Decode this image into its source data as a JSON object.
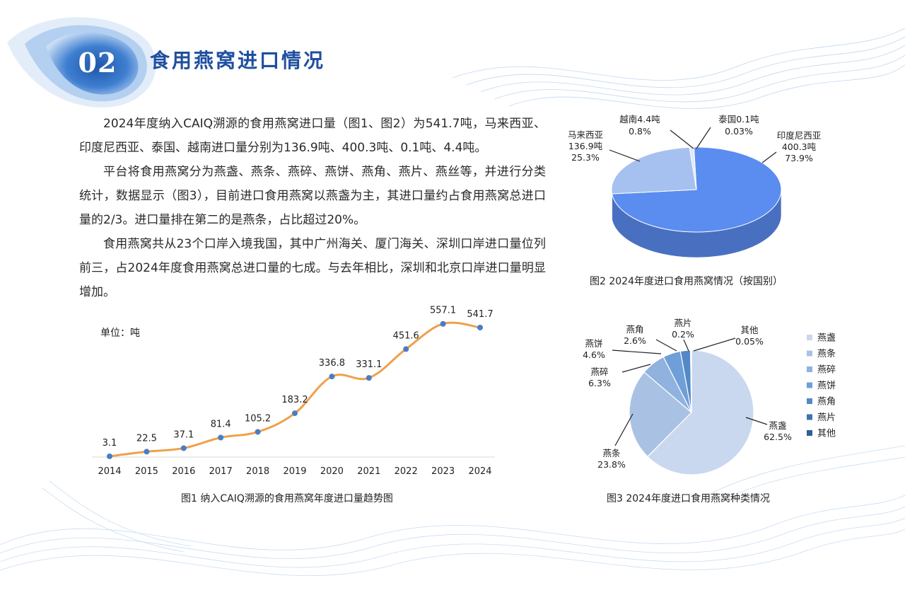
{
  "section": {
    "number": "02",
    "title": "食用燕窝进口情况"
  },
  "paragraphs": [
    "2024年度纳入CAIQ溯源的食用燕窝进口量（图1、图2）为541.7吨，马来西亚、印度尼西亚、泰国、越南进口量分别为136.9吨、400.3吨、0.1吨、4.4吨。",
    "平台将食用燕窝分为燕盏、燕条、燕碎、燕饼、燕角、燕片、燕丝等，并进行分类统计，数据显示（图3），目前进口食用燕窝以燕盏为主，其进口量约占食用燕窝总进口量的2/3。进口量排在第二的是燕条，占比超过20%。",
    "食用燕窝共从23个口岸入境我国，其中广州海关、厦门海关、深圳口岸进口量位列前三，占2024年度食用燕窝总进口量的七成。与去年相比，深圳和北京口岸进口量明显增加。"
  ],
  "colors": {
    "title_blue": "#1f4fa0",
    "line_orange": "#f0a04b",
    "point_blue": "#4a7ec2",
    "pie_main": "#5b8cf0",
    "pie_secondary": "#a6c1f0"
  },
  "chart_data": [
    {
      "type": "line",
      "caption": "图1  纳入CAIQ溯源的食用燕窝年度进口量趋势图",
      "unit_label": "单位：吨",
      "x": [
        "2014",
        "2015",
        "2016",
        "2017",
        "2018",
        "2019",
        "2020",
        "2021",
        "2022",
        "2023",
        "2024"
      ],
      "values": [
        3.1,
        22.5,
        37.1,
        81.4,
        105.2,
        183.2,
        336.8,
        331.1,
        451.6,
        557.1,
        541.7
      ],
      "value_labels": [
        "3.1",
        "22.5",
        "37.1",
        "81.4",
        "105.2",
        "183.2",
        "336.8",
        "331.1",
        "451.6",
        "557.1",
        "541.7"
      ],
      "ylim": [
        0,
        580
      ],
      "grid": false,
      "legend": "none"
    },
    {
      "type": "pie",
      "style": "3d",
      "caption": "图2  2024年度进口食用燕窝情况（按国别）",
      "slices": [
        {
          "name": "印度尼西亚",
          "amount": "400.3吨",
          "percent": "73.9%",
          "value": 73.9,
          "color": "#5b8cf0"
        },
        {
          "name": "马来西亚",
          "amount": "136.9吨",
          "percent": "25.3%",
          "value": 25.3,
          "color": "#a6c1f0"
        },
        {
          "name": "越南",
          "amount": "4.4吨",
          "percent": "0.8%",
          "value": 0.8,
          "color": "#dde8f8"
        },
        {
          "name": "泰国",
          "amount": "0.1吨",
          "percent": "0.03%",
          "value": 0.03,
          "color": "#9aa4b4"
        }
      ]
    },
    {
      "type": "pie",
      "caption": "图3  2024年度进口食用燕窝种类情况",
      "legend": "right",
      "slices": [
        {
          "name": "燕盏",
          "percent": "62.5%",
          "value": 62.5,
          "color": "#c9d8ee"
        },
        {
          "name": "燕条",
          "percent": "23.8%",
          "value": 23.8,
          "color": "#a9c2e4"
        },
        {
          "name": "燕碎",
          "percent": "6.3%",
          "value": 6.3,
          "color": "#8fb2de"
        },
        {
          "name": "燕饼",
          "percent": "4.6%",
          "value": 4.6,
          "color": "#6f9fd8"
        },
        {
          "name": "燕角",
          "percent": "2.6%",
          "value": 2.6,
          "color": "#5589c6"
        },
        {
          "name": "燕片",
          "percent": "0.2%",
          "value": 0.2,
          "color": "#3f73b0"
        },
        {
          "name": "其他",
          "percent": "0.05%",
          "value": 0.05,
          "color": "#2e5f98"
        }
      ]
    }
  ]
}
